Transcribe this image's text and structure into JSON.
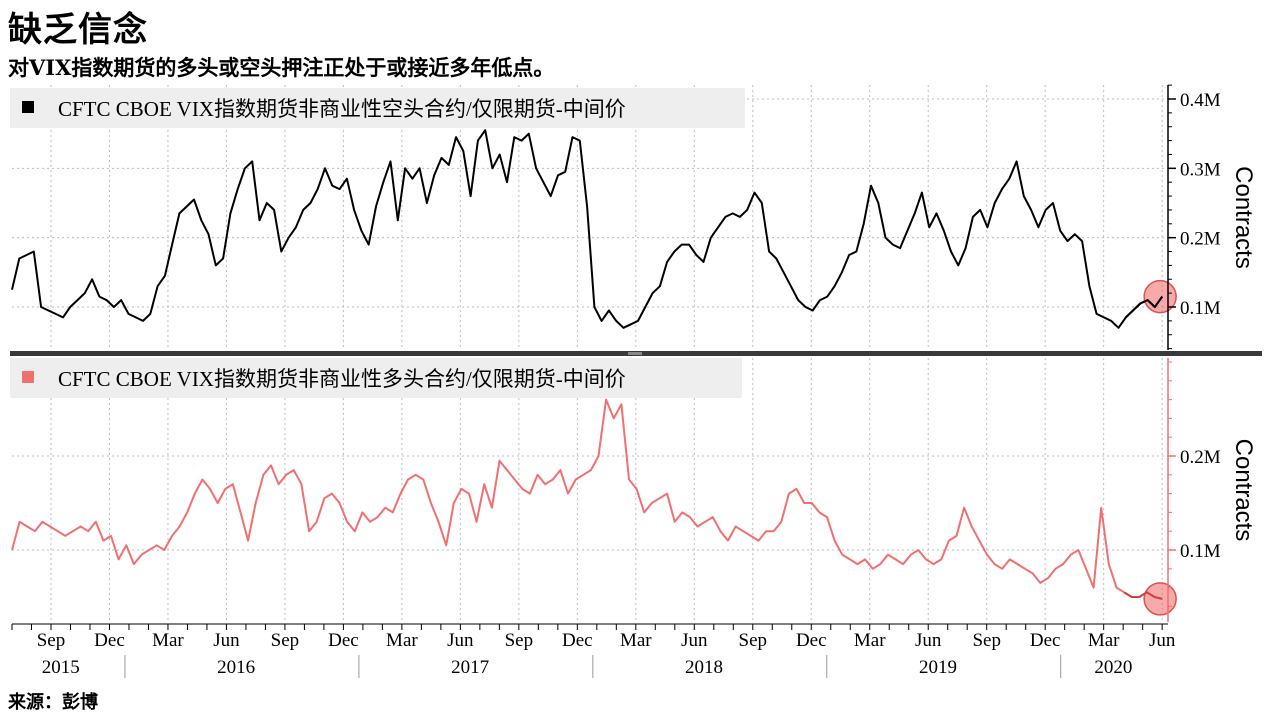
{
  "title": "缺乏信念",
  "subtitle": "对VIX指数期货的多头或空头押注正处于或接近多年低点。",
  "source": "来源：彭博",
  "chart_data": [
    {
      "type": "line",
      "legend": "CFTC CBOE VIX指数期货非商业性空头合约/仅限期货-中间价",
      "color": "#000000",
      "ylabel": "Contracts",
      "yticks": [
        "0.4M",
        "0.3M",
        "0.2M",
        "0.1M"
      ],
      "ytick_values": [
        400000,
        300000,
        200000,
        100000
      ],
      "ylim": [
        40000,
        420000
      ],
      "x_start": "2015-07",
      "x_end": "2020-06",
      "values": [
        125000,
        170000,
        175000,
        180000,
        100000,
        95000,
        90000,
        85000,
        100000,
        110000,
        120000,
        140000,
        115000,
        110000,
        100000,
        110000,
        90000,
        85000,
        80000,
        90000,
        130000,
        145000,
        190000,
        235000,
        245000,
        255000,
        225000,
        205000,
        160000,
        170000,
        235000,
        270000,
        300000,
        310000,
        225000,
        250000,
        240000,
        180000,
        200000,
        215000,
        240000,
        250000,
        270000,
        300000,
        275000,
        270000,
        285000,
        240000,
        210000,
        190000,
        245000,
        280000,
        310000,
        225000,
        300000,
        285000,
        300000,
        250000,
        290000,
        315000,
        305000,
        345000,
        325000,
        260000,
        340000,
        355000,
        300000,
        320000,
        280000,
        345000,
        340000,
        350000,
        300000,
        280000,
        260000,
        290000,
        295000,
        345000,
        340000,
        245000,
        100000,
        80000,
        95000,
        80000,
        70000,
        75000,
        80000,
        100000,
        120000,
        130000,
        165000,
        180000,
        190000,
        190000,
        175000,
        165000,
        200000,
        215000,
        230000,
        235000,
        230000,
        240000,
        265000,
        250000,
        180000,
        170000,
        150000,
        130000,
        110000,
        100000,
        95000,
        110000,
        115000,
        130000,
        150000,
        175000,
        180000,
        220000,
        275000,
        250000,
        200000,
        190000,
        185000,
        210000,
        235000,
        265000,
        215000,
        235000,
        210000,
        180000,
        160000,
        185000,
        230000,
        240000,
        215000,
        250000,
        270000,
        285000,
        310000,
        260000,
        240000,
        215000,
        240000,
        250000,
        210000,
        195000,
        205000,
        195000,
        130000,
        90000,
        85000,
        80000,
        70000,
        85000,
        95000,
        105000,
        110000,
        100000,
        115000
      ]
    },
    {
      "type": "line",
      "legend": "CFTC CBOE VIX指数期货非商业性多头合约/仅限期货-中间价",
      "color": "#f07070",
      "ylabel": "Contracts",
      "yticks": [
        "0.2M",
        "0.1M"
      ],
      "ytick_values": [
        200000,
        100000
      ],
      "ylim": [
        20000,
        300000
      ],
      "x_start": "2015-07",
      "x_end": "2020-06",
      "values": [
        100000,
        130000,
        125000,
        120000,
        130000,
        125000,
        120000,
        115000,
        120000,
        125000,
        120000,
        130000,
        110000,
        115000,
        90000,
        105000,
        85000,
        95000,
        100000,
        105000,
        100000,
        115000,
        125000,
        140000,
        160000,
        175000,
        165000,
        150000,
        165000,
        170000,
        140000,
        110000,
        150000,
        180000,
        190000,
        170000,
        180000,
        185000,
        170000,
        120000,
        130000,
        155000,
        160000,
        150000,
        130000,
        120000,
        140000,
        130000,
        135000,
        145000,
        140000,
        160000,
        175000,
        180000,
        175000,
        150000,
        130000,
        105000,
        150000,
        165000,
        160000,
        130000,
        170000,
        145000,
        195000,
        185000,
        175000,
        165000,
        160000,
        180000,
        170000,
        175000,
        185000,
        160000,
        175000,
        180000,
        185000,
        200000,
        260000,
        240000,
        255000,
        175000,
        165000,
        140000,
        150000,
        155000,
        160000,
        130000,
        140000,
        135000,
        125000,
        130000,
        135000,
        120000,
        110000,
        125000,
        120000,
        115000,
        110000,
        120000,
        120000,
        130000,
        160000,
        165000,
        150000,
        150000,
        140000,
        135000,
        110000,
        95000,
        90000,
        85000,
        90000,
        80000,
        85000,
        95000,
        90000,
        85000,
        95000,
        100000,
        90000,
        85000,
        90000,
        110000,
        115000,
        145000,
        125000,
        110000,
        95000,
        85000,
        80000,
        90000,
        85000,
        80000,
        75000,
        65000,
        70000,
        80000,
        85000,
        95000,
        100000,
        80000,
        60000,
        145000,
        85000,
        60000,
        55000,
        50000,
        50000,
        55000,
        50000,
        48000
      ]
    }
  ],
  "x_ticks": [
    "Sep",
    "Dec",
    "Mar",
    "Jun",
    "Sep",
    "Dec",
    "Mar",
    "Jun",
    "Sep",
    "Dec",
    "Mar",
    "Jun",
    "Sep",
    "Dec",
    "Mar",
    "Jun",
    "Sep",
    "Dec",
    "Mar",
    "Jun"
  ],
  "x_tick_dates": [
    "2015-09",
    "2015-12",
    "2016-03",
    "2016-06",
    "2016-09",
    "2016-12",
    "2017-03",
    "2017-06",
    "2017-09",
    "2017-12",
    "2018-03",
    "2018-06",
    "2018-09",
    "2018-12",
    "2019-03",
    "2019-06",
    "2019-09",
    "2019-12",
    "2020-03",
    "2020-06"
  ],
  "years": [
    "2015",
    "2016",
    "2017",
    "2018",
    "2019",
    "2020"
  ]
}
